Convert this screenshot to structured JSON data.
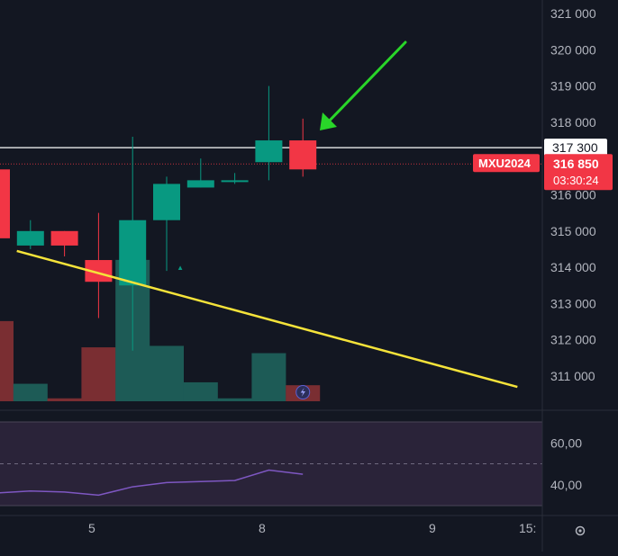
{
  "symbol_tag": "MXU2024",
  "last_price_label": "316 850",
  "countdown": "03:30:24",
  "hline_label": "317 300",
  "rsi_ticks": [
    "60,00",
    "40,00"
  ],
  "x_ticks": [
    "5",
    "8",
    "9",
    "15:"
  ],
  "colors": {
    "background": "#131722",
    "up": "#089981",
    "down": "#f23645",
    "volume_up": "#1d5b56",
    "volume_down": "#7a2e32",
    "trendline": "#f5e33a",
    "hline": "#ffffff",
    "arrow": "#29d629",
    "rsi_line": "#7e57c2",
    "rsi_band": "#2a2339"
  },
  "chart_data": {
    "type": "candlestick",
    "symbol": "MXU2024",
    "y_axis_ticks": [
      321000,
      320000,
      319000,
      318000,
      317000,
      316000,
      315000,
      314000,
      313000,
      312000,
      311000
    ],
    "ylim": [
      310400,
      321350
    ],
    "candles": [
      {
        "open": 316700,
        "high": 319100,
        "low": 314800,
        "close": 314800,
        "dir": "down"
      },
      {
        "open": 314600,
        "high": 315300,
        "low": 314500,
        "close": 315000,
        "dir": "up"
      },
      {
        "open": 315000,
        "high": 315000,
        "low": 314300,
        "close": 314600,
        "dir": "down"
      },
      {
        "open": 314200,
        "high": 315500,
        "low": 312600,
        "close": 313600,
        "dir": "down"
      },
      {
        "open": 313500,
        "high": 317600,
        "low": 311700,
        "close": 315300,
        "dir": "up"
      },
      {
        "open": 315300,
        "high": 316500,
        "low": 313900,
        "close": 316300,
        "dir": "up"
      },
      {
        "open": 316200,
        "high": 317000,
        "low": 316200,
        "close": 316400,
        "dir": "up"
      },
      {
        "open": 316400,
        "high": 316600,
        "low": 316300,
        "close": 316400,
        "dir": "up"
      },
      {
        "open": 316900,
        "high": 319000,
        "low": 316400,
        "close": 317500,
        "dir": "up"
      },
      {
        "open": 317500,
        "high": 318100,
        "low": 316500,
        "close": 316700,
        "dir": "down"
      }
    ],
    "volumes": [
      {
        "value": 0.55,
        "dir": "down"
      },
      {
        "value": 0.12,
        "dir": "up"
      },
      {
        "value": 0.02,
        "dir": "down"
      },
      {
        "value": 0.37,
        "dir": "down"
      },
      {
        "value": 0.97,
        "dir": "up"
      },
      {
        "value": 0.38,
        "dir": "up"
      },
      {
        "value": 0.13,
        "dir": "up"
      },
      {
        "value": 0.02,
        "dir": "up"
      },
      {
        "value": 0.33,
        "dir": "up"
      },
      {
        "value": 0.11,
        "dir": "down"
      }
    ],
    "horizontal_line": 317300,
    "last_price": 316850,
    "trendline": [
      {
        "candle": 0.6,
        "price": 314450
      },
      {
        "candle": 15.3,
        "price": 310700
      }
    ],
    "marker": {
      "candle": 5.4,
      "price": 314000,
      "symbol": "▲"
    },
    "rsi": {
      "ticks": [
        60,
        40
      ],
      "band": [
        30,
        70
      ],
      "dashed_level": 50,
      "values": [
        36,
        37,
        36.5,
        35,
        39,
        41,
        41.5,
        42,
        47,
        45
      ]
    },
    "x_axis_ticks": [
      {
        "label": "5",
        "at_candle": 2.8
      },
      {
        "label": "8",
        "at_candle": 7.8
      },
      {
        "label": "9",
        "at_candle": 12.8
      },
      {
        "label": "15:",
        "at_candle": 15.6
      }
    ]
  }
}
